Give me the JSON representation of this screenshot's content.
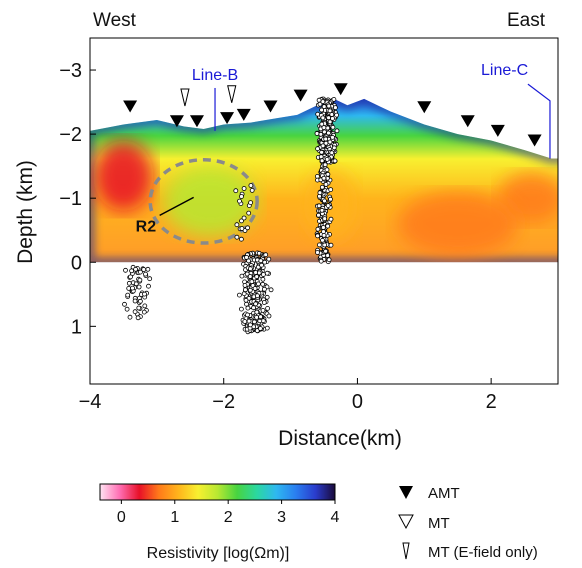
{
  "chart_data": {
    "type": "scatter",
    "title": "",
    "xlabel": "Distance(km)",
    "ylabel": "Depth (km)",
    "xlim": [
      -4,
      3
    ],
    "ylim": [
      1.9,
      -3.5
    ],
    "x_ticks": [
      -4,
      -2,
      0,
      2
    ],
    "x_tick_labels": [
      "−4",
      "−2",
      "0",
      "2"
    ],
    "y_ticks": [
      -3,
      -2,
      -1,
      0,
      1
    ],
    "y_tick_labels": [
      "−3",
      "−2",
      "−1",
      "0",
      "1"
    ],
    "direction_labels": {
      "west": "West",
      "east": "East"
    },
    "line_labels": [
      {
        "text": "Line-B",
        "x": -2.13,
        "y": -3.0,
        "color": "#1a1ad6"
      },
      {
        "text": "Line-C",
        "x": 2.5,
        "y": -3.0,
        "color": "#1a1ad6"
      }
    ],
    "region_label": {
      "text": "R2",
      "cx": -2.3,
      "cy": -0.95,
      "rx": 0.8,
      "ry": 0.65
    },
    "colorbar": {
      "label": "Resistivity [log(Ωm)]",
      "min": -0.4,
      "max": 4,
      "ticks": [
        0,
        1,
        2,
        3,
        4
      ],
      "tick_labels": [
        "0",
        "1",
        "2",
        "3",
        "4"
      ],
      "colors": [
        "#ffe4f3",
        "#ff6fb4",
        "#e81028",
        "#ff7a1a",
        "#ffb41c",
        "#f8f030",
        "#b8e832",
        "#48d440",
        "#2bd8a0",
        "#2eb8f0",
        "#2a7ef0",
        "#2a3ccc",
        "#1a0a3a"
      ]
    },
    "legend": [
      {
        "symbol": "filled-triangle",
        "label": "AMT"
      },
      {
        "symbol": "open-triangle",
        "label": "MT"
      },
      {
        "symbol": "open-narrow-triangle",
        "label": "MT (E-field only)"
      }
    ],
    "surface_profile": [
      [
        -4,
        -2.05
      ],
      [
        -3.5,
        -2.15
      ],
      [
        -3.0,
        -2.22
      ],
      [
        -2.6,
        -2.12
      ],
      [
        -2.3,
        -2.08
      ],
      [
        -2.0,
        -2.15
      ],
      [
        -1.6,
        -2.18
      ],
      [
        -1.2,
        -2.25
      ],
      [
        -0.9,
        -2.3
      ],
      [
        -0.6,
        -2.45
      ],
      [
        -0.35,
        -2.55
      ],
      [
        -0.15,
        -2.45
      ],
      [
        0.1,
        -2.55
      ],
      [
        0.5,
        -2.35
      ],
      [
        1.0,
        -2.15
      ],
      [
        1.5,
        -2.0
      ],
      [
        2.0,
        -1.9
      ],
      [
        2.5,
        -1.75
      ],
      [
        2.9,
        -1.62
      ]
    ],
    "stations": {
      "AMT": [
        [
          -3.4,
          -2.43
        ],
        [
          -2.7,
          -2.2
        ],
        [
          -2.4,
          -2.2
        ],
        [
          -1.95,
          -2.25
        ],
        [
          -1.7,
          -2.3
        ],
        [
          -1.3,
          -2.43
        ],
        [
          -0.85,
          -2.6
        ],
        [
          -0.25,
          -2.7
        ],
        [
          1.0,
          -2.42
        ],
        [
          1.65,
          -2.2
        ],
        [
          2.1,
          -2.05
        ],
        [
          2.65,
          -1.9
        ]
      ],
      "MT_E_only": [
        [
          -2.58,
          -2.58
        ],
        [
          -1.88,
          -2.63
        ]
      ]
    },
    "earthquake_clusters": [
      {
        "x": -0.45,
        "y_min": -2.55,
        "y_max": -1.55,
        "spread": 0.12,
        "count": 340
      },
      {
        "x": -0.5,
        "y_min": -1.55,
        "y_max": 0.0,
        "spread": 0.09,
        "count": 170
      },
      {
        "x": -1.55,
        "y_min": -0.15,
        "y_max": 1.1,
        "spread": 0.2,
        "count": 260
      },
      {
        "x": -3.3,
        "y_min": 0.05,
        "y_max": 0.9,
        "spread": 0.18,
        "count": 55
      },
      {
        "x": -1.7,
        "y_min": -1.2,
        "y_max": -0.3,
        "spread": 0.15,
        "count": 20
      }
    ],
    "resistivity_features": [
      {
        "x": -3.5,
        "y": -1.35,
        "rx": 0.45,
        "ry": 0.55,
        "value": 0.5
      },
      {
        "x": 2.6,
        "y": -1.0,
        "rx": 0.5,
        "ry": 0.4,
        "value": 0.6
      },
      {
        "x": -2.2,
        "y": -0.95,
        "rx": 0.7,
        "ry": 0.55,
        "value": 1.8
      },
      {
        "x": -0.4,
        "y": -0.9,
        "rx": 0.4,
        "ry": 0.55,
        "value": 1.2
      },
      {
        "x": 1.5,
        "y": -0.6,
        "rx": 0.9,
        "ry": 0.5,
        "value": 0.7
      }
    ]
  }
}
